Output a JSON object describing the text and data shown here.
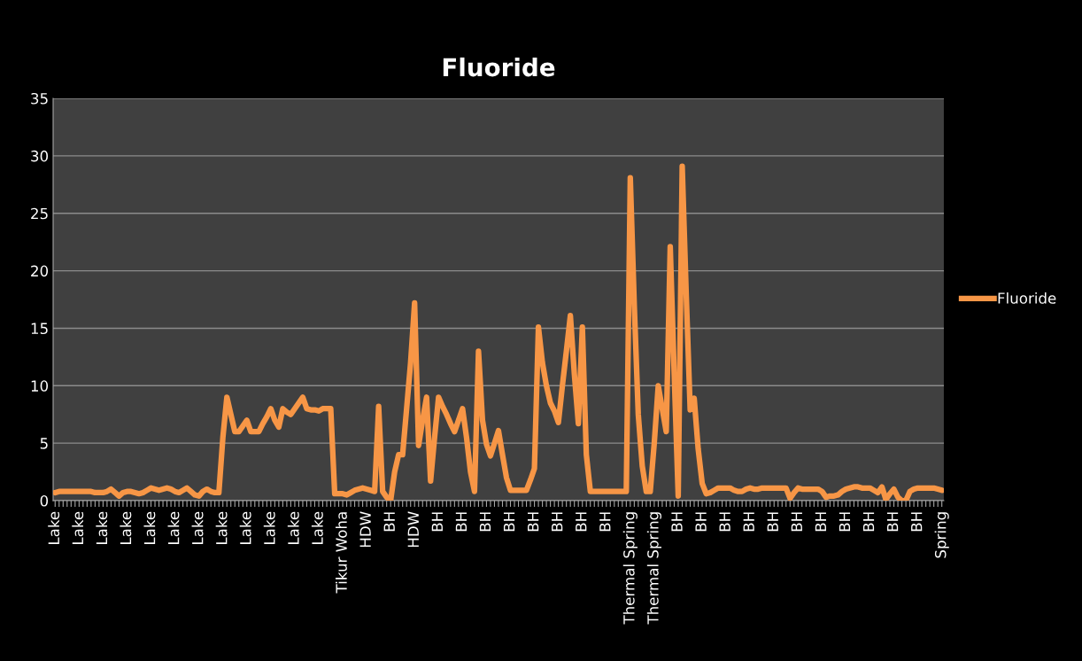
{
  "chart_data": {
    "type": "line",
    "title": "Fluoride",
    "categories": [
      "Lake",
      null,
      null,
      null,
      null,
      null,
      "Lake",
      null,
      null,
      null,
      null,
      null,
      "Lake",
      null,
      null,
      null,
      null,
      null,
      "Lake",
      null,
      null,
      null,
      null,
      null,
      "Lake",
      null,
      null,
      null,
      null,
      null,
      "Lake",
      null,
      null,
      null,
      null,
      null,
      "Lake",
      null,
      null,
      null,
      null,
      null,
      "Lake",
      null,
      null,
      null,
      null,
      null,
      "Lake",
      null,
      null,
      null,
      null,
      null,
      "Lake",
      null,
      null,
      null,
      null,
      null,
      "Lake",
      null,
      null,
      null,
      null,
      null,
      "Lake",
      null,
      null,
      null,
      null,
      null,
      "Tikur Woha",
      null,
      null,
      null,
      null,
      null,
      "HDW",
      null,
      null,
      null,
      null,
      null,
      "BH",
      null,
      null,
      null,
      null,
      null,
      "HDW",
      null,
      null,
      null,
      null,
      null,
      "BH",
      null,
      null,
      null,
      null,
      null,
      "BH",
      null,
      null,
      null,
      null,
      null,
      "BH",
      null,
      null,
      null,
      null,
      null,
      "BH",
      null,
      null,
      null,
      null,
      null,
      "BH",
      null,
      null,
      null,
      null,
      null,
      "BH",
      null,
      null,
      null,
      null,
      null,
      "BH",
      null,
      null,
      null,
      null,
      null,
      "BH",
      null,
      null,
      null,
      null,
      null,
      "Thermal Spring",
      null,
      null,
      null,
      null,
      null,
      "Thermal Spring",
      null,
      null,
      null,
      null,
      null,
      "BH",
      null,
      null,
      null,
      null,
      null,
      "BH",
      null,
      null,
      null,
      null,
      null,
      "BH",
      null,
      null,
      null,
      null,
      null,
      "BH",
      null,
      null,
      null,
      null,
      null,
      "BH",
      null,
      null,
      null,
      null,
      null,
      "BH",
      null,
      null,
      null,
      null,
      null,
      "BH",
      null,
      null,
      null,
      null,
      null,
      "BH",
      null,
      null,
      null,
      null,
      null,
      "BH",
      null,
      null,
      null,
      null,
      null,
      "BH",
      null,
      null,
      null,
      null,
      null,
      "BH",
      null,
      null,
      null,
      null,
      null,
      "Spring"
    ],
    "series": [
      {
        "name": "Fluoride",
        "color": "#f79646",
        "values": [
          0.7,
          0.8,
          0.8,
          0.8,
          0.8,
          0.8,
          0.8,
          0.8,
          0.8,
          0.8,
          0.7,
          0.7,
          0.7,
          0.8,
          1.0,
          0.7,
          0.4,
          0.7,
          0.8,
          0.8,
          0.7,
          0.6,
          0.7,
          0.9,
          1.1,
          1.0,
          0.9,
          1.0,
          1.1,
          1.0,
          0.8,
          0.7,
          0.9,
          1.1,
          0.8,
          0.5,
          0.4,
          0.8,
          1.0,
          0.8,
          0.7,
          0.7,
          5.5,
          9.0,
          7.5,
          6.0,
          6.0,
          6.5,
          7.0,
          6.0,
          6.0,
          6.0,
          6.7,
          7.3,
          8.0,
          7.0,
          6.4,
          8.0,
          7.7,
          7.5,
          8.0,
          8.5,
          9.0,
          8.0,
          7.9,
          7.9,
          7.8,
          8.0,
          8.0,
          8.0,
          0.6,
          0.6,
          0.6,
          0.5,
          0.7,
          0.9,
          1.0,
          1.1,
          1.0,
          0.9,
          0.8,
          8.2,
          0.8,
          0.3,
          0.0,
          2.5,
          4.0,
          4.0,
          8.0,
          12.0,
          17.2,
          4.8,
          7.0,
          9.0,
          1.7,
          5.5,
          9.0,
          8.2,
          7.5,
          6.7,
          6.0,
          7.0,
          8.0,
          5.5,
          2.5,
          0.8,
          13.0,
          7.0,
          4.9,
          3.9,
          5.0,
          6.1,
          4.0,
          2.0,
          0.9,
          0.9,
          0.9,
          0.9,
          0.9,
          1.8,
          2.8,
          15.1,
          12.0,
          10.0,
          8.5,
          7.8,
          6.8,
          10.0,
          13.0,
          16.1,
          11.0,
          6.7,
          15.1,
          4.0,
          0.8,
          0.8,
          0.8,
          0.8,
          0.8,
          0.8,
          0.8,
          0.8,
          0.8,
          0.8,
          28.1,
          17.0,
          7.5,
          3.0,
          0.8,
          0.8,
          5.0,
          10.0,
          8.0,
          6.0,
          22.1,
          11.0,
          0.4,
          29.1,
          18.0,
          7.9,
          8.9,
          4.5,
          1.5,
          0.6,
          0.7,
          0.9,
          1.1,
          1.1,
          1.1,
          1.1,
          0.9,
          0.8,
          0.8,
          1.0,
          1.1,
          1.0,
          1.0,
          1.1,
          1.1,
          1.1,
          1.1,
          1.1,
          1.1,
          1.1,
          0.2,
          0.7,
          1.1,
          1.0,
          1.0,
          1.0,
          1.0,
          1.0,
          0.8,
          0.3,
          0.4,
          0.4,
          0.5,
          0.8,
          1.0,
          1.1,
          1.2,
          1.2,
          1.1,
          1.1,
          1.1,
          0.9,
          0.7,
          1.2,
          0.1,
          0.6,
          1.0,
          0.3,
          0.0,
          0.0,
          0.8,
          1.0,
          1.1,
          1.1,
          1.1,
          1.1,
          1.1,
          1.0,
          0.9
        ]
      }
    ],
    "ylim": [
      0,
      35
    ],
    "yticks": [
      0,
      5,
      10,
      15,
      20,
      25,
      30,
      35
    ],
    "grid": "y",
    "legend": "right",
    "marker": "none",
    "line_style": "solid"
  }
}
